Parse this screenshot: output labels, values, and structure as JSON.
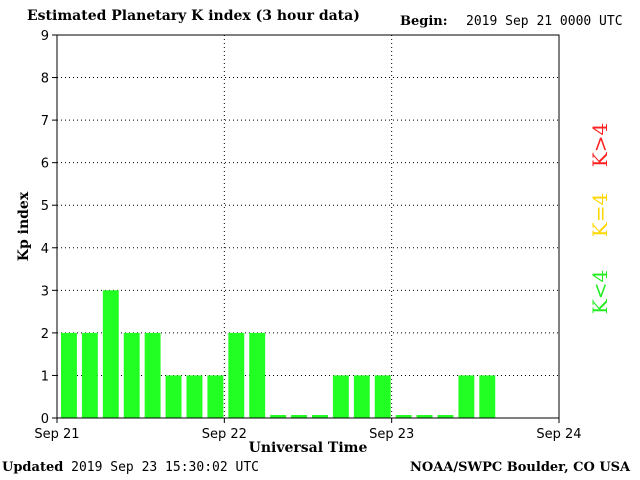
{
  "header": {
    "title": "Estimated Planetary K index (3 hour data)",
    "begin_label": "Begin:",
    "begin_value": "2019 Sep 21 0000 UTC"
  },
  "footer": {
    "updated_label": "Updated",
    "updated_value": "2019 Sep 23 15:30:02 UTC",
    "credit": "NOAA/SWPC Boulder, CO USA"
  },
  "legend": [
    {
      "label": "K>4",
      "color": "#ff2020"
    },
    {
      "label": "K=4",
      "color": "#ffd700"
    },
    {
      "label": "K<4",
      "color": "#22ee22"
    }
  ],
  "chart_data": {
    "type": "bar",
    "title": "Estimated Planetary K index (3 hour data)",
    "xlabel": "Universal Time",
    "ylabel": "Kp index",
    "ylim": [
      0,
      9
    ],
    "yticks": [
      0,
      1,
      2,
      3,
      4,
      5,
      6,
      7,
      8,
      9
    ],
    "xticks": [
      "Sep 21",
      "Sep 22",
      "Sep 23",
      "Sep 24"
    ],
    "x_interval_hours": 3,
    "values": [
      2,
      2,
      3,
      2,
      2,
      1,
      1,
      1,
      2,
      2,
      0.07,
      0.07,
      0.07,
      1,
      1,
      1,
      0.07,
      0.07,
      0.07,
      1,
      1
    ],
    "bar_color": "#22ff22",
    "grid": "dotted"
  }
}
